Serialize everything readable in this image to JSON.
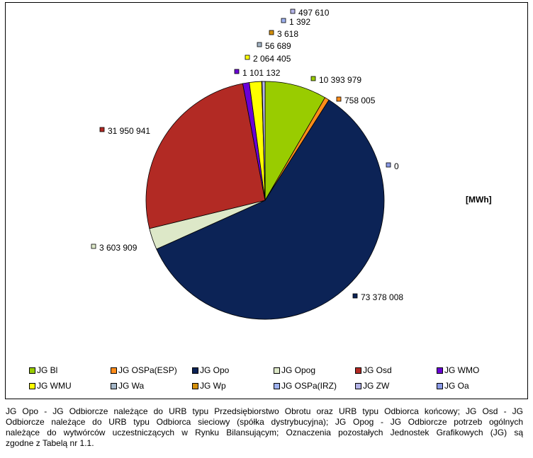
{
  "chart_data": {
    "type": "pie",
    "unit_label": "[MWh]",
    "slices": [
      {
        "name": "JG Bl",
        "value": 10393979,
        "label": "10 393 979",
        "color": "#99cc00"
      },
      {
        "name": "JG OSPa(ESP)",
        "value": 758005,
        "label": "758 005",
        "color": "#ff8c1a"
      },
      {
        "name": "JG Opo",
        "value": 73378008,
        "label": "73 378 008",
        "color": "#0c2356"
      },
      {
        "name": "JG Opog",
        "value": 3603909,
        "label": "3 603 909",
        "color": "#dde8c8"
      },
      {
        "name": "JG Osd",
        "value": 31950941,
        "label": "31 950 941",
        "color": "#b22a24"
      },
      {
        "name": "JG WMO",
        "value": 1101132,
        "label": "1 101 132",
        "color": "#6a00d6"
      },
      {
        "name": "JG WMU",
        "value": 2064405,
        "label": "2 064 405",
        "color": "#ffff00"
      },
      {
        "name": "JG Wa",
        "value": 56689,
        "label": "56 689",
        "color": "#a3b5c6"
      },
      {
        "name": "JG Wp",
        "value": 3618,
        "label": "3 618",
        "color": "#d4900c"
      },
      {
        "name": "JG OSPa(IRZ)",
        "value": 1392,
        "label": "1 392",
        "color": "#9fb2f0"
      },
      {
        "name": "JG ZW",
        "value": 497610,
        "label": "497 610",
        "color": "#b4b4e8"
      },
      {
        "name": "JG Oa",
        "value": 0,
        "label": "0",
        "color": "#8a9ae6"
      }
    ]
  },
  "footnote": [
    "JG Opo - JG Odbiorcze należące do URB typu Przedsiębiorstwo Obrotu oraz URB typu Odbiorca końcowy; JG Osd - JG",
    "Odbiorcze należące do URB typu Odbiorca sieciowy (spółka dystrybucyjna); JG Opog - JG Odbiorcze potrzeb ogólnych",
    "należące do wytwórców uczestniczących w Rynku Bilansującym; Oznaczenia pozostałych Jednostek Grafikowych (JG) są",
    "zgodne z Tabelą nr 1.1."
  ]
}
